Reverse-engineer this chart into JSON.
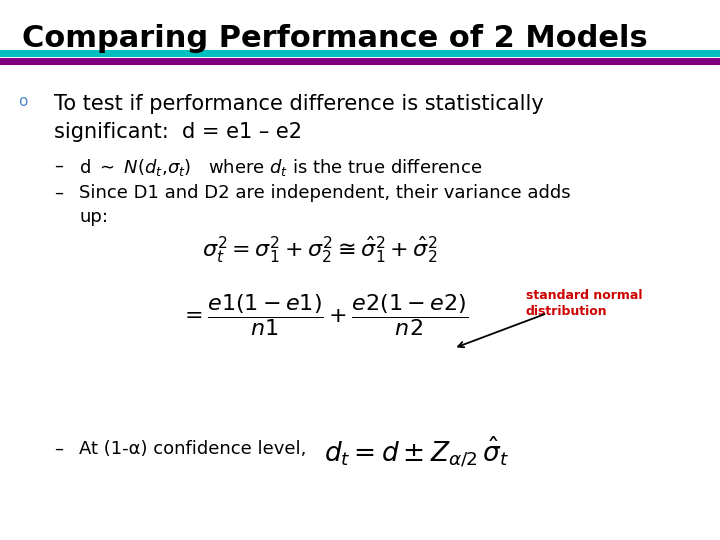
{
  "title": "Comparing Performance of 2 Models",
  "title_fontsize": 22,
  "title_fontweight": "bold",
  "title_color": "#000000",
  "bg_color": "#ffffff",
  "bar1_color": "#00BFBF",
  "bar2_color": "#800080",
  "bullet_color": "#4a86c8",
  "bullet_fontsize": 15,
  "dash_fontsize": 13,
  "formula_fontsize": 16,
  "formula3_fontsize": 19,
  "annotation_color": "#cc0000",
  "annotation_fontsize": 9,
  "bullet_text_line1": "To test if performance difference is statistically",
  "bullet_text_line2": "significant:  d = e1 – e2",
  "dash3_text": "At (1-α) confidence level,",
  "annotation_text_line1": "standard normal",
  "annotation_text_line2": "distribution"
}
